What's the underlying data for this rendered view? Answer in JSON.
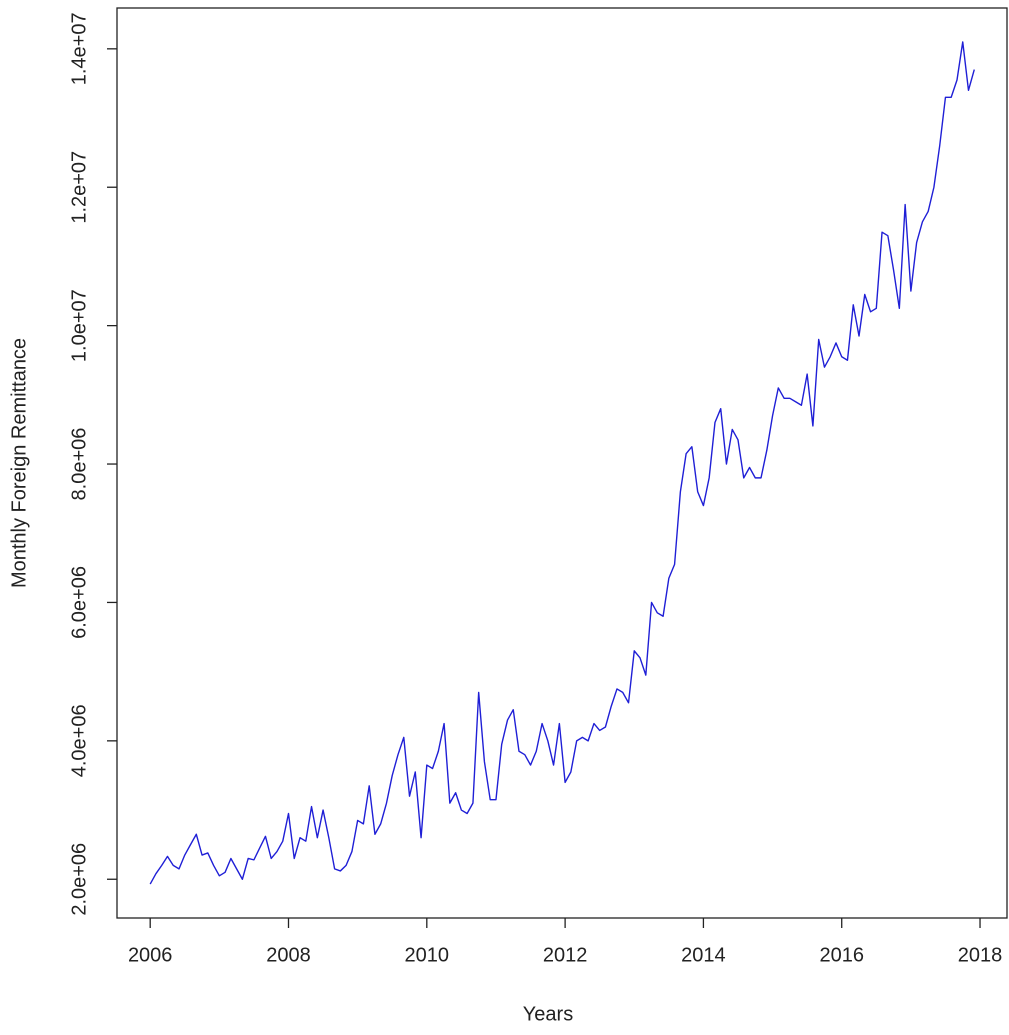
{
  "chart_data": {
    "type": "line",
    "x_label": "Years",
    "y_label": "Monthly Foreign Remittance",
    "color": "#1f1fd6",
    "xlim": [
      2005.52,
      2018.39
    ],
    "ylim": [
      1440000,
      14590000
    ],
    "xticks": [
      2006,
      2008,
      2010,
      2012,
      2014,
      2016,
      2018
    ],
    "yticks": [
      {
        "value": 2000000,
        "label": "2.0e+06"
      },
      {
        "value": 4000000,
        "label": "4.0e+06"
      },
      {
        "value": 6000000,
        "label": "6.0e+06"
      },
      {
        "value": 8000000,
        "label": "8.0e+06"
      },
      {
        "value": 10000000,
        "label": "1.0e+07"
      },
      {
        "value": 12000000,
        "label": "1.2e+07"
      },
      {
        "value": 14000000,
        "label": "1.4e+07"
      }
    ],
    "grid": false,
    "x": [
      2006,
      2006.083,
      2006.167,
      2006.25,
      2006.333,
      2006.417,
      2006.5,
      2006.583,
      2006.667,
      2006.75,
      2006.833,
      2006.917,
      2007,
      2007.083,
      2007.167,
      2007.25,
      2007.333,
      2007.417,
      2007.5,
      2007.583,
      2007.667,
      2007.75,
      2007.833,
      2007.917,
      2008,
      2008.083,
      2008.167,
      2008.25,
      2008.333,
      2008.417,
      2008.5,
      2008.583,
      2008.667,
      2008.75,
      2008.833,
      2008.917,
      2009,
      2009.083,
      2009.167,
      2009.25,
      2009.333,
      2009.417,
      2009.5,
      2009.583,
      2009.667,
      2009.75,
      2009.833,
      2009.917,
      2010,
      2010.083,
      2010.167,
      2010.25,
      2010.333,
      2010.417,
      2010.5,
      2010.583,
      2010.667,
      2010.75,
      2010.833,
      2010.917,
      2011,
      2011.083,
      2011.167,
      2011.25,
      2011.333,
      2011.417,
      2011.5,
      2011.583,
      2011.667,
      2011.75,
      2011.833,
      2011.917,
      2012,
      2012.083,
      2012.167,
      2012.25,
      2012.333,
      2012.417,
      2012.5,
      2012.583,
      2012.667,
      2012.75,
      2012.833,
      2012.917,
      2013,
      2013.083,
      2013.167,
      2013.25,
      2013.333,
      2013.417,
      2013.5,
      2013.583,
      2013.667,
      2013.75,
      2013.833,
      2013.917,
      2014,
      2014.083,
      2014.167,
      2014.25,
      2014.333,
      2014.417,
      2014.5,
      2014.583,
      2014.667,
      2014.75,
      2014.833,
      2014.917,
      2015,
      2015.083,
      2015.167,
      2015.25,
      2015.333,
      2015.417,
      2015.5,
      2015.583,
      2015.667,
      2015.75,
      2015.833,
      2015.917,
      2016,
      2016.083,
      2016.167,
      2016.25,
      2016.333,
      2016.417,
      2016.5,
      2016.583,
      2016.667,
      2016.75,
      2016.833,
      2016.917,
      2017,
      2017.083,
      2017.167,
      2017.25,
      2017.333,
      2017.417,
      2017.5,
      2017.583,
      2017.667,
      2017.75,
      2017.833,
      2017.917
    ],
    "values": [
      1930000,
      2080000,
      2200000,
      2330000,
      2200000,
      2150000,
      2350000,
      2500000,
      2650000,
      2350000,
      2380000,
      2200000,
      2050000,
      2100000,
      2300000,
      2150000,
      2000000,
      2300000,
      2280000,
      2450000,
      2620000,
      2300000,
      2400000,
      2550000,
      2950000,
      2300000,
      2600000,
      2550000,
      3050000,
      2600000,
      3000000,
      2600000,
      2150000,
      2120000,
      2200000,
      2400000,
      2850000,
      2800000,
      3350000,
      2650000,
      2800000,
      3100000,
      3500000,
      3800000,
      4050000,
      3200000,
      3550000,
      2600000,
      3650000,
      3600000,
      3850000,
      4250000,
      3100000,
      3250000,
      3000000,
      2950000,
      3100000,
      4700000,
      3700000,
      3150000,
      3150000,
      3950000,
      4300000,
      4450000,
      3850000,
      3800000,
      3650000,
      3850000,
      4250000,
      4000000,
      3650000,
      4250000,
      3400000,
      3550000,
      4000000,
      4050000,
      4000000,
      4250000,
      4150000,
      4200000,
      4500000,
      4750000,
      4700000,
      4550000,
      5300000,
      5200000,
      4950000,
      6000000,
      5850000,
      5800000,
      6350000,
      6550000,
      7600000,
      8150000,
      8250000,
      7600000,
      7400000,
      7800000,
      8600000,
      8800000,
      8000000,
      8500000,
      8350000,
      7800000,
      7950000,
      7800000,
      7800000,
      8200000,
      8700000,
      9100000,
      8950000,
      8950000,
      8900000,
      8850000,
      9300000,
      8550000,
      9800000,
      9400000,
      9550000,
      9750000,
      9550000,
      9500000,
      10300000,
      9850000,
      10450000,
      10200000,
      10250000,
      11350000,
      11300000,
      10800000,
      10250000,
      11750000,
      10500000,
      11200000,
      11500000,
      11650000,
      12000000,
      12600000,
      13300000,
      13300000,
      13550000,
      14100000,
      13400000,
      13700000
    ]
  }
}
